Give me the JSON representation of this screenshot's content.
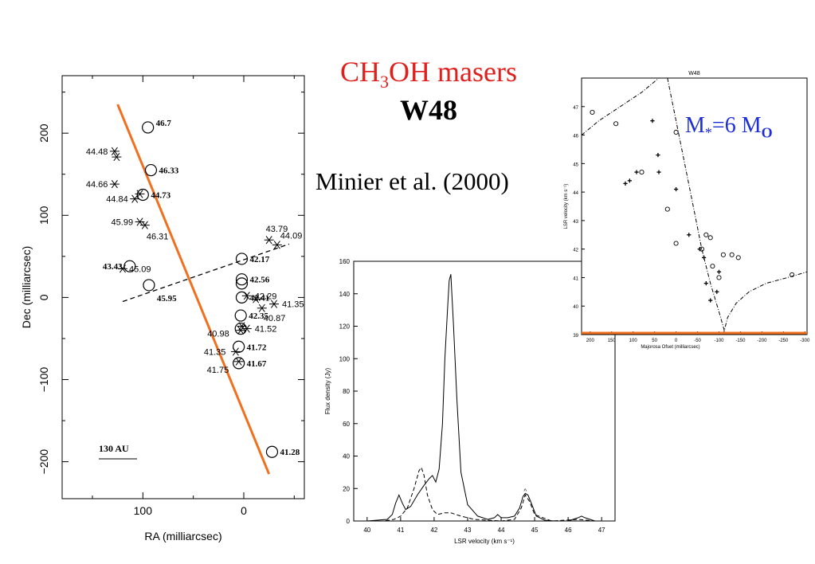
{
  "header": {
    "title_prefix": "CH",
    "title_sub1": "3",
    "title_suffix": "OH masers",
    "source": "W48",
    "citation": "Minier et al. (2000)",
    "mass_prefix": "M",
    "mass_star": "*",
    "mass_value": "=6 M",
    "mass_sun": "O"
  },
  "colors": {
    "title": "#e0201c",
    "fit_line": "#f07020",
    "mass_label": "#1f2fd6"
  },
  "chart_data": [
    {
      "type": "scatter",
      "xlabel": "RA (milliarcsec)",
      "ylabel": "Dec (milliarcsec)",
      "xlim": [
        180,
        -60
      ],
      "ylim": [
        -245,
        270
      ],
      "x_ticks": [
        "100",
        "0"
      ],
      "y_ticks": [
        "200",
        "100",
        "0",
        "−100",
        "−200"
      ],
      "scale_bar_label": "130 AU",
      "fit_line": [
        [
          125,
          235
        ],
        [
          -25,
          -215
        ]
      ],
      "dashed_line": [
        [
          120,
          -5
        ],
        [
          -45,
          65
        ]
      ],
      "circles": [
        {
          "x": 95,
          "y": 207,
          "label": "46.7"
        },
        {
          "x": 92,
          "y": 155,
          "label": "46.33"
        },
        {
          "x": 100,
          "y": 125,
          "label": "44.73"
        },
        {
          "x": 113,
          "y": 38,
          "label": "43.43"
        },
        {
          "x": 94,
          "y": 15,
          "label": "45.95"
        },
        {
          "x": 2,
          "y": 47,
          "label": "42.17"
        },
        {
          "x": 2,
          "y": 22,
          "label": "42.56"
        },
        {
          "x": 2,
          "y": 17,
          "label": ""
        },
        {
          "x": 2,
          "y": 0,
          "label": "42.41"
        },
        {
          "x": 3,
          "y": -22,
          "label": "42.35"
        },
        {
          "x": 3,
          "y": -38,
          "label": ""
        },
        {
          "x": 5,
          "y": -60,
          "label": "41.72"
        },
        {
          "x": 5,
          "y": -80,
          "label": "41.67"
        },
        {
          "x": -28,
          "y": -188,
          "label": "41.28"
        }
      ],
      "stars": [
        {
          "x": 128,
          "y": 178,
          "label": "44.48"
        },
        {
          "x": 126,
          "y": 171,
          "label": ""
        },
        {
          "x": 128,
          "y": 138,
          "label": "44.66"
        },
        {
          "x": 108,
          "y": 120,
          "label": "44.84"
        },
        {
          "x": 103,
          "y": 126,
          "label": ""
        },
        {
          "x": 103,
          "y": 92,
          "label": "45.99"
        },
        {
          "x": 98,
          "y": 88,
          "label": "46.31"
        },
        {
          "x": 120,
          "y": 35,
          "label": "45.09"
        },
        {
          "x": -25,
          "y": 70,
          "label": "43.79"
        },
        {
          "x": -33,
          "y": 64,
          "label": "44.09"
        },
        {
          "x": -3,
          "y": 2,
          "label": "42.29"
        },
        {
          "x": -12,
          "y": -2,
          "label": ""
        },
        {
          "x": -30,
          "y": -8,
          "label": "41.35"
        },
        {
          "x": -18,
          "y": -13,
          "label": "40.87"
        },
        {
          "x": 2,
          "y": -35,
          "label": ""
        },
        {
          "x": -3,
          "y": -38,
          "label": "41.52"
        },
        {
          "x": 3,
          "y": -40,
          "label": "40.98"
        },
        {
          "x": 8,
          "y": -66,
          "label": "41.35"
        },
        {
          "x": 5,
          "y": -78,
          "label": "41.75"
        }
      ]
    },
    {
      "type": "line",
      "xlabel": "LSR velocity (km s⁻¹)",
      "ylabel": "Flux density (Jy)",
      "xlim": [
        39.6,
        47.4
      ],
      "ylim": [
        0,
        160
      ],
      "x_ticks": [
        40,
        41,
        42,
        43,
        44,
        45,
        46,
        47
      ],
      "y_ticks": [
        0,
        20,
        40,
        60,
        80,
        100,
        120,
        140,
        160
      ],
      "series": [
        {
          "style": "solid",
          "x": [
            39.6,
            40.0,
            40.3,
            40.6,
            40.75,
            40.85,
            40.95,
            41.05,
            41.15,
            41.3,
            41.5,
            41.7,
            41.85,
            41.95,
            42.05,
            42.15,
            42.25,
            42.32,
            42.4,
            42.45,
            42.5,
            42.58,
            42.68,
            42.8,
            43.0,
            43.3,
            43.6,
            43.8,
            43.9,
            44.0,
            44.2,
            44.4,
            44.55,
            44.65,
            44.72,
            44.8,
            44.9,
            45.05,
            45.3,
            45.6,
            46.0,
            46.3,
            46.4,
            46.5,
            46.8,
            47.4
          ],
          "y": [
            0,
            0,
            0.5,
            1,
            4,
            11,
            16,
            11,
            7,
            9,
            16,
            22,
            26,
            28,
            24,
            32,
            60,
            100,
            130,
            148,
            152,
            120,
            75,
            30,
            10,
            3,
            1,
            2,
            4,
            2,
            2,
            3,
            8,
            15,
            17,
            16,
            11,
            3,
            0.5,
            0,
            0,
            2,
            3,
            2,
            0,
            0
          ]
        },
        {
          "style": "dashed",
          "x": [
            39.6,
            40.0,
            40.5,
            40.8,
            41.0,
            41.2,
            41.4,
            41.55,
            41.62,
            41.7,
            41.8,
            41.95,
            42.1,
            42.3,
            42.5,
            42.8,
            43.2,
            44.0,
            44.4,
            44.6,
            44.72,
            44.85,
            45.0,
            45.5,
            46.3,
            46.8,
            47.4
          ],
          "y": [
            0,
            0,
            0,
            1,
            3,
            8,
            20,
            31,
            33,
            28,
            16,
            7,
            4,
            5,
            5,
            3,
            1,
            0,
            1,
            8,
            16,
            12,
            4,
            0,
            1,
            0,
            0
          ]
        }
      ],
      "annotations": [
        {
          "x": 44.72,
          "y": 19,
          "text": "^"
        }
      ]
    },
    {
      "type": "scatter",
      "title": "W48",
      "xlabel": "Majorosa Ofset (milliarcsec)",
      "ylabel": "LSR velocity (km s⁻¹)",
      "xlim": [
        220,
        -305
      ],
      "ylim": [
        39,
        48
      ],
      "x_ticks": [
        200,
        150,
        100,
        50,
        0,
        -50,
        -100,
        -150,
        -200,
        -250,
        -300
      ],
      "y_ticks": [
        39,
        40,
        41,
        42,
        43,
        44,
        45,
        46,
        47
      ],
      "circles": [
        {
          "x": 195,
          "y": 46.8
        },
        {
          "x": 140,
          "y": 46.4
        },
        {
          "x": 0,
          "y": 46.1
        },
        {
          "x": 80,
          "y": 44.7
        },
        {
          "x": 20,
          "y": 43.4
        },
        {
          "x": 0,
          "y": 42.2
        },
        {
          "x": -60,
          "y": 42.0
        },
        {
          "x": -70,
          "y": 42.5
        },
        {
          "x": -80,
          "y": 42.4
        },
        {
          "x": -85,
          "y": 41.4
        },
        {
          "x": -100,
          "y": 41.0
        },
        {
          "x": -110,
          "y": 41.8
        },
        {
          "x": -130,
          "y": 41.8
        },
        {
          "x": -145,
          "y": 41.7
        },
        {
          "x": -270,
          "y": 41.1
        }
      ],
      "crosses": [
        {
          "x": 55,
          "y": 46.5
        },
        {
          "x": 42,
          "y": 45.3
        },
        {
          "x": 118,
          "y": 44.3
        },
        {
          "x": 108,
          "y": 44.4
        },
        {
          "x": 92,
          "y": 44.7
        },
        {
          "x": 40,
          "y": 44.7
        },
        {
          "x": 0,
          "y": 44.1
        },
        {
          "x": -30,
          "y": 42.5
        },
        {
          "x": -55,
          "y": 42.0
        },
        {
          "x": -65,
          "y": 41.7
        },
        {
          "x": -70,
          "y": 40.8
        },
        {
          "x": -80,
          "y": 40.2
        },
        {
          "x": -95,
          "y": 40.5
        },
        {
          "x": -100,
          "y": 41.2
        }
      ],
      "dashed_curves": [
        {
          "x": [
            220,
            180,
            130,
            80,
            40,
            15
          ],
          "y": [
            46.0,
            46.5,
            47.0,
            47.5,
            48.0,
            48.5
          ]
        },
        {
          "x": [
            20,
            0,
            -20,
            -40,
            -60,
            -80,
            -100,
            -115
          ],
          "y": [
            48.0,
            46.5,
            45.0,
            43.5,
            42.0,
            40.8,
            39.8,
            39.0
          ]
        },
        {
          "x": [
            -110,
            -120,
            -140,
            -170,
            -210,
            -260,
            -305
          ],
          "y": [
            39.0,
            39.6,
            40.1,
            40.5,
            40.8,
            41.0,
            41.2
          ]
        }
      ]
    }
  ]
}
